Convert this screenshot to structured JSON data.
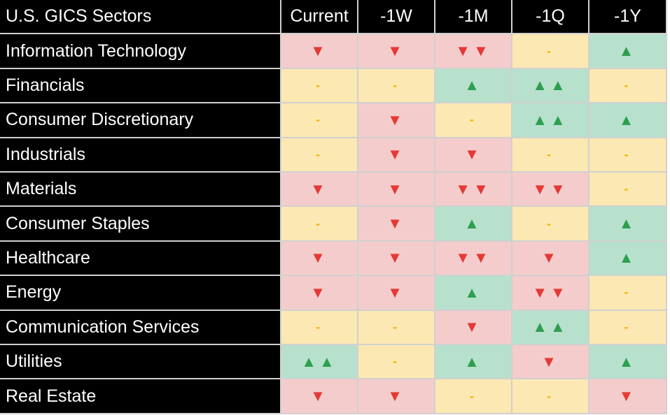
{
  "table": {
    "header": [
      "U.S. GICS Sectors",
      "Current",
      "-1W",
      "-1M",
      "-1Q",
      "-1Y"
    ],
    "rows": [
      [
        "Information Technology",
        "▼",
        "▼",
        "▼▼",
        "-",
        "▲"
      ],
      [
        "Financials",
        "-",
        "-",
        "▲",
        "▲▲",
        "-"
      ],
      [
        "Consumer Discretionary",
        "-",
        "▼",
        "-",
        "▲▲",
        "▲"
      ],
      [
        "Industrials",
        "-",
        "▼",
        "▼",
        "-",
        "-"
      ],
      [
        "Materials",
        "▼",
        "▼",
        "▼▼",
        "▼▼",
        "-"
      ],
      [
        "Consumer Staples",
        "-",
        "▼",
        "▲",
        "-",
        "▲"
      ],
      [
        "Healthcare",
        "▼",
        "▼",
        "▼▼",
        "▼",
        "▲"
      ],
      [
        "Energy",
        "▼",
        "▼",
        "▲",
        "▼▼",
        "-"
      ],
      [
        "Communication Services",
        "-",
        "-",
        "▼",
        "▲▲",
        "-"
      ],
      [
        "Utilities",
        "▲▲",
        "-",
        "▲",
        "▼",
        "▲"
      ],
      [
        "Real Estate",
        "▼",
        "▼",
        "-",
        "-",
        "▼"
      ]
    ]
  }
}
